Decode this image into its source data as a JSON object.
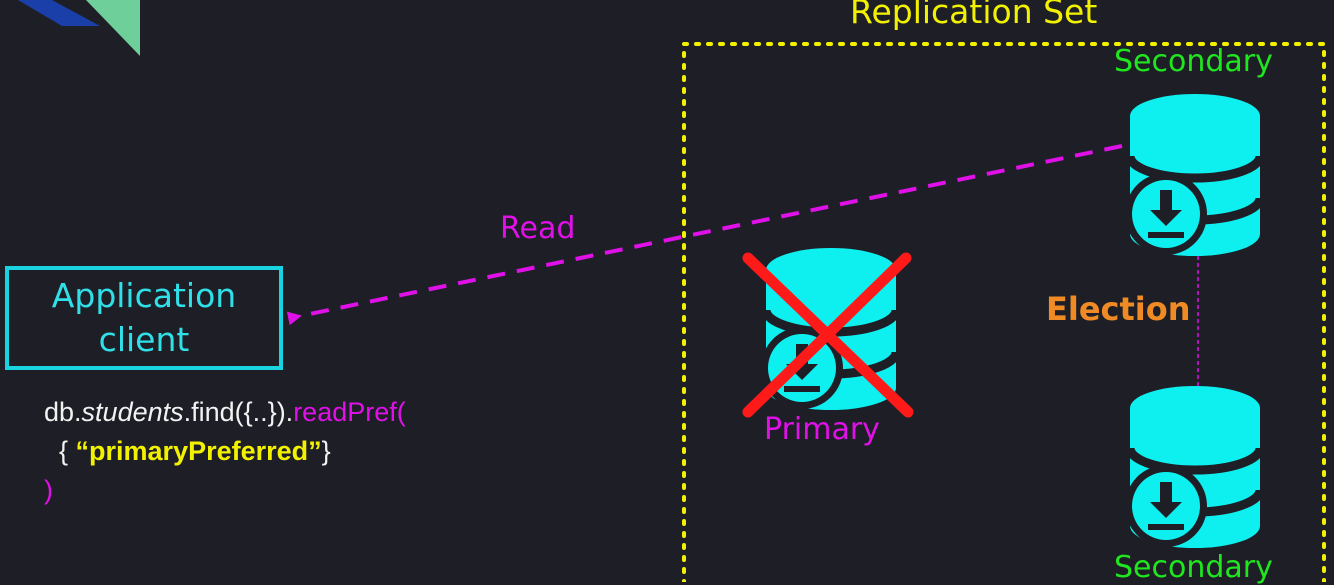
{
  "diagram": {
    "replication_set_title": "Replication Set",
    "application_client": {
      "line1": "Application",
      "line2": "client"
    },
    "read_label": "Read",
    "election_label": "Election",
    "nodes": {
      "secondary_top": "Secondary",
      "primary": "Primary",
      "secondary_bottom": "Secondary"
    },
    "code": {
      "prefix": "db.",
      "collection": "students",
      "find_call": ".find({..}).",
      "method": "readPref(",
      "line2_open": "  { ",
      "preference": "“primaryPreferred”",
      "line2_close": "}",
      "line3": ")"
    }
  },
  "colors": {
    "background": "#1e1f26",
    "db_cyan": "#0ef0f0",
    "replset_border": "#f2f200",
    "read_arrow": "#e010e8",
    "failure_cross": "#ff1a1a",
    "election": "#f08a24",
    "secondary_label": "#1fe61f",
    "client_border": "#19d3e0"
  },
  "icons": {
    "database": "database-download-icon",
    "failure": "x-cross-icon",
    "logo": "corner-logo-icon"
  }
}
